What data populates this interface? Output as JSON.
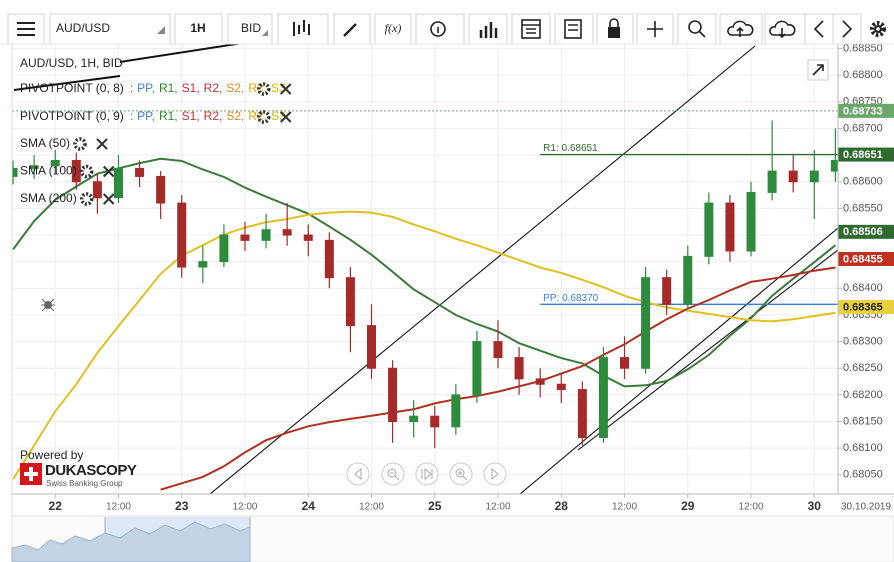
{
  "toolbar": {
    "symbol": "AUD/USD",
    "period": "1H",
    "side": "BID",
    "fx": "f(x)"
  },
  "chart_data": {
    "type": "candlestick",
    "title": "AUD/USD, 1H, BID",
    "x": [
      0,
      4,
      8,
      12,
      16,
      20,
      24,
      28,
      32,
      36,
      40,
      44,
      48,
      52,
      56,
      60,
      64,
      68,
      72,
      76,
      80,
      84,
      88,
      92,
      96,
      100,
      104,
      108,
      112,
      116,
      120,
      124,
      128,
      132,
      136,
      140,
      144,
      148,
      152,
      156
    ],
    "open": [
      0.6861,
      0.68625,
      0.6863,
      0.6864,
      0.686,
      0.6857,
      0.68625,
      0.6861,
      0.6856,
      0.6844,
      0.6845,
      0.685,
      0.6849,
      0.6851,
      0.685,
      0.6849,
      0.6842,
      0.6833,
      0.6825,
      0.6815,
      0.6816,
      0.6814,
      0.682,
      0.683,
      0.6827,
      0.6823,
      0.6822,
      0.6821,
      0.6812,
      0.6827,
      0.6825,
      0.6842,
      0.6837,
      0.6846,
      0.6856,
      0.6847,
      0.6858,
      0.6862,
      0.686,
      0.6862
    ],
    "high": [
      0.6864,
      0.6865,
      0.6866,
      0.68655,
      0.68615,
      0.6865,
      0.6864,
      0.6862,
      0.68575,
      0.6848,
      0.6852,
      0.68525,
      0.6854,
      0.6856,
      0.6852,
      0.68505,
      0.6844,
      0.6837,
      0.68265,
      0.6819,
      0.6818,
      0.6822,
      0.6832,
      0.6834,
      0.6829,
      0.6825,
      0.6824,
      0.68225,
      0.6829,
      0.6831,
      0.6844,
      0.68435,
      0.6848,
      0.6858,
      0.68575,
      0.686,
      0.68715,
      0.6865,
      0.6866,
      0.687
    ],
    "low": [
      0.68595,
      0.68605,
      0.68615,
      0.68585,
      0.6854,
      0.6856,
      0.6859,
      0.6853,
      0.6842,
      0.6841,
      0.6844,
      0.6847,
      0.68475,
      0.6848,
      0.6846,
      0.684,
      0.6828,
      0.6823,
      0.6811,
      0.6812,
      0.681,
      0.68125,
      0.68185,
      0.6825,
      0.682,
      0.68195,
      0.68185,
      0.68105,
      0.6811,
      0.6823,
      0.6824,
      0.6835,
      0.6836,
      0.68445,
      0.6845,
      0.6846,
      0.68565,
      0.6858,
      0.6853,
      0.686
    ],
    "close": [
      0.68625,
      0.6863,
      0.6864,
      0.686,
      0.6857,
      0.68625,
      0.6861,
      0.6856,
      0.6844,
      0.6845,
      0.685,
      0.6849,
      0.6851,
      0.685,
      0.6849,
      0.6842,
      0.6833,
      0.6825,
      0.6815,
      0.6816,
      0.6814,
      0.682,
      0.683,
      0.6827,
      0.6823,
      0.6822,
      0.6821,
      0.6812,
      0.6827,
      0.6825,
      0.6842,
      0.6837,
      0.6846,
      0.6856,
      0.6847,
      0.6858,
      0.6862,
      0.686,
      0.6862,
      0.6864
    ],
    "bull_color": "#2e8b3e",
    "bear_color": "#a52a2a",
    "series": [
      {
        "name": "SMA (50)",
        "color": "#3c7a3c",
        "values": [
          0.68473,
          0.68526,
          0.68566,
          0.68591,
          0.68615,
          0.68625,
          0.68635,
          0.68643,
          0.68639,
          0.68623,
          0.68609,
          0.68589,
          0.68572,
          0.68556,
          0.6854,
          0.68516,
          0.68491,
          0.68463,
          0.68431,
          0.68398,
          0.68374,
          0.6835,
          0.68333,
          0.68319,
          0.68297,
          0.68283,
          0.68269,
          0.68259,
          0.68236,
          0.68216,
          0.68218,
          0.68226,
          0.68248,
          0.68275,
          0.68311,
          0.68344,
          0.68386,
          0.68418,
          0.68449,
          0.68481
        ]
      },
      {
        "name": "SMA (100)",
        "color": "#e0c020",
        "values": [
          0.68042,
          0.68105,
          0.68169,
          0.6822,
          0.68279,
          0.68329,
          0.68378,
          0.68427,
          0.68461,
          0.68481,
          0.68501,
          0.68514,
          0.68524,
          0.6853,
          0.68538,
          0.68542,
          0.68544,
          0.68542,
          0.68534,
          0.6852,
          0.68507,
          0.68493,
          0.68481,
          0.68467,
          0.68453,
          0.68439,
          0.68429,
          0.68416,
          0.68402,
          0.68386,
          0.68374,
          0.68364,
          0.68358,
          0.68352,
          0.68346,
          0.6834,
          0.68338,
          0.68342,
          0.68348,
          0.68354
        ]
      },
      {
        "name": "SMA (200)",
        "color": "#b03020",
        "values": [
          null,
          null,
          null,
          null,
          null,
          null,
          null,
          0.68022,
          0.68034,
          0.68046,
          0.68066,
          0.68092,
          0.68115,
          0.68129,
          0.68141,
          0.68149,
          0.68155,
          0.68161,
          0.68167,
          0.68173,
          0.68184,
          0.68192,
          0.68198,
          0.68206,
          0.68216,
          0.68226,
          0.6824,
          0.68254,
          0.68275,
          0.68295,
          0.68319,
          0.68342,
          0.68362,
          0.68378,
          0.68396,
          0.68412,
          0.68418,
          0.68425,
          0.68433,
          0.68439
        ]
      }
    ],
    "pivot_indicators": [
      {
        "name": "PIVOTPOINT (0, 8)",
        "separator": ":",
        "levels": [
          "PP,",
          "R1,",
          "S1,",
          "R2,",
          "S2,",
          "R3,",
          "S3"
        ]
      },
      {
        "name": "PIVOTPOINT (0, 9)",
        "separator": ":",
        "levels": [
          "PP,",
          "R1,",
          "S1,",
          "R2,",
          "S2,",
          "R3,",
          "S3"
        ]
      }
    ],
    "level_colors": [
      "#3a7fd5",
      "#2a8a2a",
      "#c83030",
      "#c83030",
      "#e08a20",
      "#e0a800",
      "#d4b800"
    ],
    "pivot_lines": [
      {
        "label": "R1: 0.68651",
        "value": 0.68651,
        "color": "#2f6b2f"
      },
      {
        "label": "PP: 0.68370",
        "value": 0.6837,
        "color": "#3a7fd5"
      }
    ],
    "price_markers": [
      {
        "value": 0.68733,
        "color": "#6aa86a",
        "text_color": "#fff"
      },
      {
        "value": 0.68651,
        "color": "#2f6b2f",
        "text_color": "#fff"
      },
      {
        "value": 0.68506,
        "color": "#2f6b2f",
        "text_color": "#fff"
      },
      {
        "value": 0.68455,
        "color": "#c03020",
        "text_color": "#fff"
      },
      {
        "value": 0.68365,
        "color": "#e8d040",
        "text_color": "#222"
      }
    ],
    "xlim": [
      -0.2,
      156.5
    ],
    "xticks": [
      {
        "value": 8,
        "label": "22"
      },
      {
        "value": 20,
        "label": "12:00"
      },
      {
        "value": 32,
        "label": "23"
      },
      {
        "value": 44,
        "label": "12:00"
      },
      {
        "value": 56,
        "label": "24"
      },
      {
        "value": 68,
        "label": "12:00"
      },
      {
        "value": 80,
        "label": "25"
      },
      {
        "value": 92,
        "label": "12:00"
      },
      {
        "value": 104,
        "label": "28"
      },
      {
        "value": 116,
        "label": "12:00"
      },
      {
        "value": 128,
        "label": "29"
      },
      {
        "value": 140,
        "label": "12:00"
      },
      {
        "value": 152,
        "label": "30"
      }
    ],
    "date_label": "30.10.2019",
    "ylim": [
      0.68014,
      0.68866
    ],
    "yticks": [
      {
        "value": 0.6805,
        "label": "0.68050"
      },
      {
        "value": 0.681,
        "label": "0.68100"
      },
      {
        "value": 0.6815,
        "label": "0.68150"
      },
      {
        "value": 0.682,
        "label": "0.68200"
      },
      {
        "value": 0.6825,
        "label": "0.68250"
      },
      {
        "value": 0.683,
        "label": "0.68300"
      },
      {
        "value": 0.6835,
        "label": "0.68350"
      },
      {
        "value": 0.684,
        "label": "0.68400"
      },
      {
        "value": 0.6845,
        "label": "0.68450"
      },
      {
        "value": 0.685,
        "label": "0.68500"
      },
      {
        "value": 0.6855,
        "label": "0.68550"
      },
      {
        "value": 0.686,
        "label": "0.68600"
      },
      {
        "value": 0.6865,
        "label": "0.68650"
      },
      {
        "value": 0.687,
        "label": "0.68700"
      },
      {
        "value": 0.6875,
        "label": "0.68750"
      },
      {
        "value": 0.688,
        "label": "0.68800"
      },
      {
        "value": 0.6885,
        "label": "0.68850"
      }
    ],
    "grid": true
  },
  "branding": {
    "powered": "Powered by",
    "brand": "DUKASCOPY",
    "tagline": "Swiss Banking Group"
  }
}
